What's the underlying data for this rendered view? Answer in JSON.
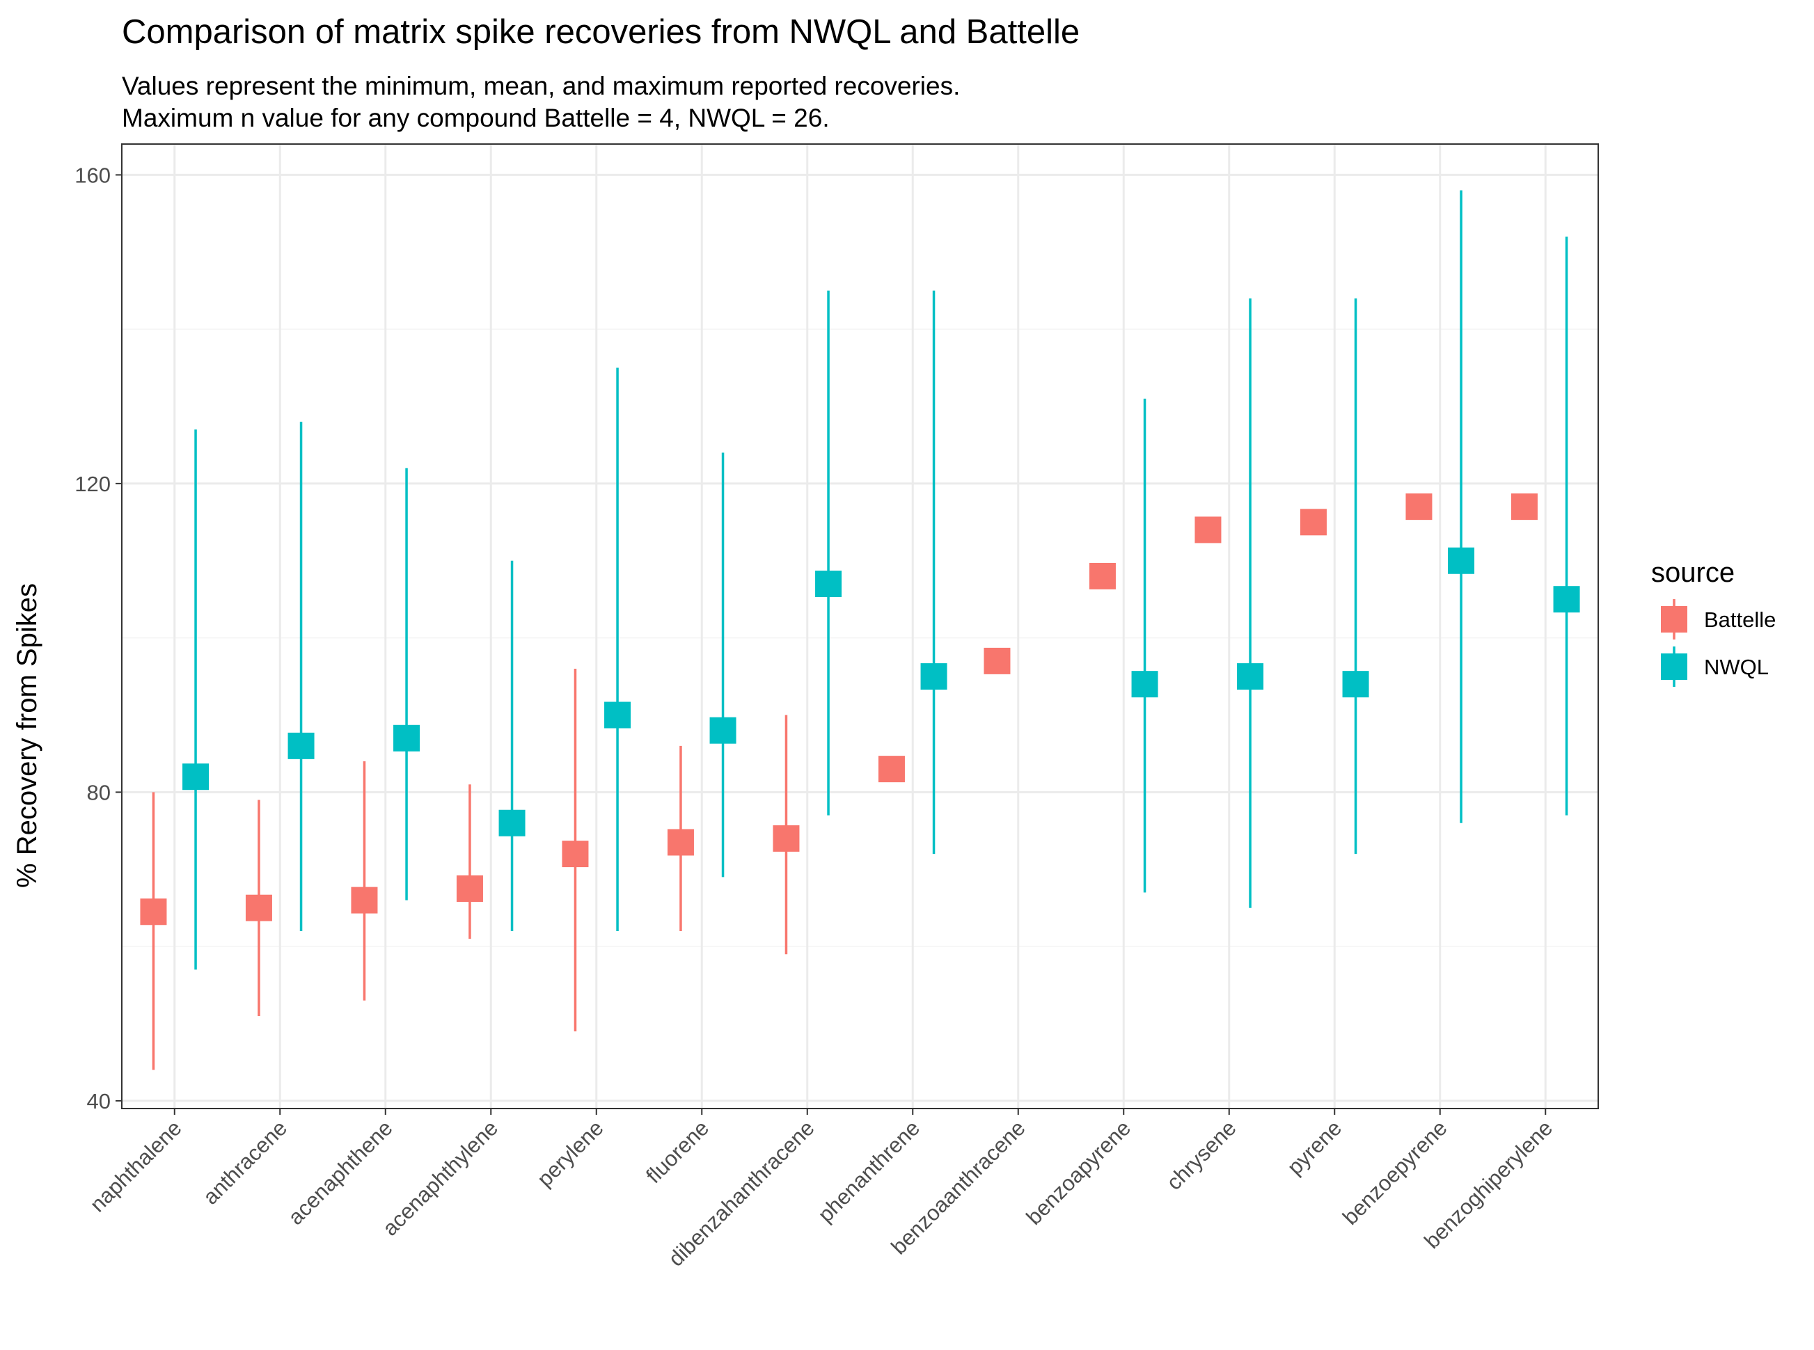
{
  "chart_data": {
    "type": "scatter",
    "title": "Comparison of matrix spike recoveries from NWQL and Battelle",
    "subtitle_lines": [
      "Values represent the minimum, mean, and maximum reported recoveries.",
      "Maximum n value for any compound Battelle = 4, NWQL = 26."
    ],
    "xlabel": "",
    "ylabel": "% Recovery from Spikes",
    "ylim": [
      39,
      164
    ],
    "yticks": [
      "40",
      "80",
      "120",
      "160"
    ],
    "ytick_values": [
      40,
      80,
      120,
      160
    ],
    "grid": true,
    "legend_position": "right",
    "legend_title": "source",
    "categories": [
      "naphthalene",
      "anthracene",
      "acenaphthene",
      "acenaphthylene",
      "perylene",
      "fluorene",
      "dibenzahanthracene",
      "phenanthrene",
      "benzoaanthracene",
      "benzoapyrene",
      "chrysene",
      "pyrene",
      "benzoepyrene",
      "benzoghiperylene"
    ],
    "series": [
      {
        "name": "Battelle",
        "color": "#F8766D",
        "min": [
          44,
          51,
          53,
          61,
          49,
          62,
          59,
          null,
          null,
          null,
          null,
          null,
          null,
          null
        ],
        "mean": [
          64.5,
          65,
          66,
          67.5,
          72,
          73.5,
          74,
          83,
          97,
          108,
          114,
          115,
          117,
          117
        ],
        "max": [
          80,
          79,
          84,
          81,
          96,
          86,
          90,
          null,
          null,
          null,
          null,
          null,
          null,
          null
        ]
      },
      {
        "name": "NWQL",
        "color": "#00BFC4",
        "min": [
          57,
          62,
          66,
          62,
          62,
          69,
          77,
          72,
          null,
          67,
          65,
          72,
          76,
          77
        ],
        "mean": [
          82,
          86,
          87,
          76,
          90,
          88,
          107,
          95,
          null,
          94,
          95,
          94,
          110,
          105
        ],
        "max": [
          127,
          128,
          122,
          110,
          135,
          124,
          145,
          145,
          null,
          131,
          144,
          144,
          158,
          152
        ]
      }
    ]
  },
  "colors": {
    "background": "#ffffff",
    "grid": "#ebebeb",
    "panel_border": "#333333",
    "tick_text": "#4d4d4d"
  }
}
